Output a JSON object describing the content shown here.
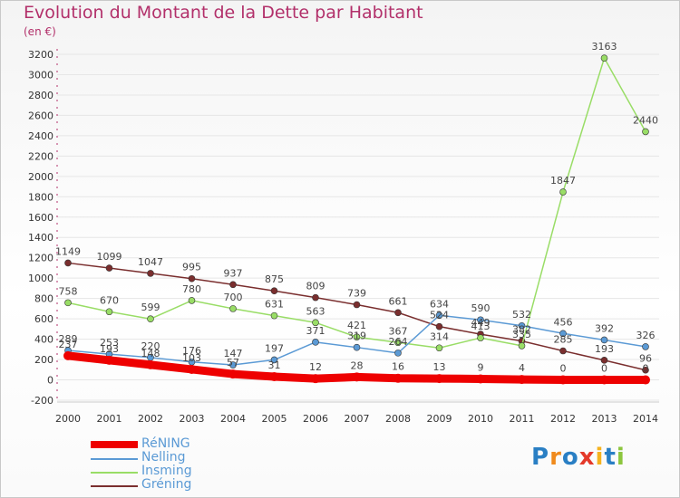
{
  "title": "Evolution du Montant de la Dette par Habitant",
  "subtitle": "(en €)",
  "brand": "Proxiti",
  "colors": {
    "title": "#b2306a",
    "axis": "#333333",
    "grid": "#e6e6e6"
  },
  "chart_data": {
    "type": "line",
    "title": "Evolution du Montant de la Dette par Habitant",
    "subtitle": "(en €)",
    "xlabel": "",
    "ylabel": "",
    "ylim": [
      -200,
      3200
    ],
    "yticks": [
      -200,
      0,
      200,
      400,
      600,
      800,
      1000,
      1200,
      1400,
      1600,
      1800,
      2000,
      2200,
      2400,
      2600,
      2800,
      3000,
      3200
    ],
    "categories": [
      "2000",
      "2001",
      "2002",
      "2003",
      "2004",
      "2005",
      "2006",
      "2007",
      "2008",
      "2009",
      "2010",
      "2011",
      "2012",
      "2013",
      "2014"
    ],
    "grid": true,
    "legend_position": "bottom-left",
    "series": [
      {
        "name": "RéNING",
        "color": "#ee0000",
        "values": [
          237,
          193,
          148,
          103,
          57,
          31,
          12,
          28,
          16,
          13,
          9,
          4,
          0,
          0,
          0
        ],
        "labels": [
          "237",
          "193",
          "148",
          "103",
          "57",
          "31",
          "12",
          "28",
          "16",
          "13",
          "9",
          "4",
          "0",
          "0",
          "0"
        ]
      },
      {
        "name": "Nelling",
        "color": "#5b9ad5",
        "values": [
          289,
          253,
          220,
          176,
          147,
          197,
          371,
          319,
          264,
          634,
          590,
          532,
          456,
          392,
          326
        ],
        "labels": [
          "289",
          "253",
          "220",
          "176",
          "147",
          "197",
          "371",
          "319",
          "264",
          "634",
          "590",
          "532",
          "456",
          "392",
          "326"
        ]
      },
      {
        "name": "Insming",
        "color": "#99dd66",
        "values": [
          758,
          670,
          599,
          780,
          700,
          631,
          563,
          421,
          367,
          314,
          413,
          335,
          1847,
          3163,
          2440
        ],
        "labels": [
          "758",
          "670",
          "599",
          "780",
          "700",
          "631",
          "563",
          "421",
          "367",
          "314",
          "413",
          "335",
          "1847",
          "3163",
          "2440"
        ]
      },
      {
        "name": "Gréning",
        "color": "#7a2e2e",
        "values": [
          1149,
          1099,
          1047,
          995,
          937,
          875,
          809,
          739,
          661,
          524,
          449,
          382,
          285,
          193,
          96
        ],
        "labels": [
          "1149",
          "1099",
          "1047",
          "995",
          "937",
          "875",
          "809",
          "739",
          "661",
          "524",
          "449",
          "382",
          "285",
          "193",
          "96"
        ]
      }
    ]
  }
}
